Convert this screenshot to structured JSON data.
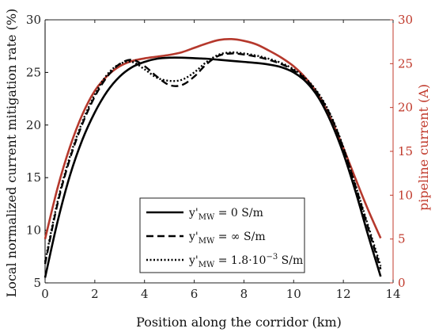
{
  "chart_data": {
    "type": "line",
    "xlabel": "Position along the corridor (km)",
    "ylabel_left": "Local normalized current mitigation rate (%)",
    "ylabel_right": "pipeline current (A)",
    "xlim": [
      0,
      14
    ],
    "ylim_left": [
      5,
      30
    ],
    "ylim_right": [
      0,
      30
    ],
    "xticks": [
      0,
      2,
      4,
      6,
      8,
      10,
      12,
      14
    ],
    "yticks_left": [
      5,
      10,
      15,
      20,
      25,
      30
    ],
    "yticks_right": [
      0,
      5,
      10,
      15,
      20,
      25,
      30
    ],
    "grid": false,
    "legend_position": "bottom-center",
    "colors": {
      "left_axis": "#000000",
      "right_axis": "#c0392b",
      "pipeline": "#b5382c"
    },
    "series": [
      {
        "name": "y'_MW = 0 S/m",
        "legend_main": "y'",
        "legend_sub": "MW",
        "legend_tail": " = 0 S/m",
        "axis": "left",
        "style": "solid",
        "x": [
          0,
          0.5,
          1,
          1.5,
          2,
          2.5,
          3,
          3.5,
          4,
          4.5,
          5,
          5.5,
          6,
          6.5,
          7,
          7.5,
          8,
          8.5,
          9,
          9.5,
          10,
          10.5,
          11,
          11.5,
          12,
          12.5,
          13,
          13.5
        ],
        "y": [
          5.5,
          10.8,
          15.2,
          18.6,
          21.2,
          23.2,
          24.6,
          25.5,
          26.0,
          26.3,
          26.4,
          26.4,
          26.35,
          26.3,
          26.2,
          26.1,
          26.0,
          25.9,
          25.75,
          25.5,
          25.0,
          24.1,
          22.6,
          20.3,
          17.3,
          13.6,
          9.5,
          5.6
        ]
      },
      {
        "name": "y'_MW = ∞ S/m",
        "legend_main": "y'",
        "legend_sub": "MW",
        "legend_tail": " = ∞ S/m",
        "axis": "left",
        "style": "dashed",
        "x": [
          0,
          0.5,
          1,
          1.5,
          2,
          2.5,
          3,
          3.5,
          4,
          4.5,
          5,
          5.5,
          6,
          6.5,
          7,
          7.5,
          8,
          8.5,
          9,
          9.5,
          10,
          10.5,
          11,
          11.5,
          12,
          12.5,
          13,
          13.5
        ],
        "y": [
          6.8,
          12.5,
          16.8,
          20.1,
          22.7,
          24.6,
          25.8,
          26.2,
          25.6,
          24.6,
          23.8,
          23.8,
          24.6,
          25.8,
          26.6,
          26.8,
          26.7,
          26.5,
          26.2,
          25.8,
          25.2,
          24.3,
          22.9,
          20.8,
          17.8,
          14.1,
          10.2,
          6.3
        ]
      },
      {
        "name": "y'_MW = 1.8·10^-3 S/m",
        "legend_main": "y'",
        "legend_sub": "MW",
        "legend_tail": " = 1.8·10",
        "legend_sup": "−3",
        "legend_unit": " S/m",
        "axis": "left",
        "style": "dotted",
        "x": [
          0,
          0.5,
          1,
          1.5,
          2,
          2.5,
          3,
          3.5,
          4,
          4.5,
          5,
          5.5,
          6,
          6.5,
          7,
          7.5,
          8,
          8.5,
          9,
          9.5,
          10,
          10.5,
          11,
          11.5,
          12,
          12.5,
          13,
          13.5
        ],
        "y": [
          7.0,
          12.7,
          17.0,
          20.3,
          22.9,
          24.8,
          25.8,
          26.0,
          25.3,
          24.5,
          24.2,
          24.3,
          25.0,
          26.0,
          26.7,
          26.9,
          26.8,
          26.6,
          26.3,
          25.9,
          25.3,
          24.4,
          23.0,
          20.9,
          17.9,
          14.2,
          10.4,
          6.6
        ]
      },
      {
        "name": "pipeline current",
        "axis": "right",
        "style": "solid-red",
        "x": [
          0,
          0.5,
          1,
          1.5,
          2,
          2.5,
          3,
          3.5,
          4,
          4.5,
          5,
          5.5,
          6,
          6.5,
          7,
          7.5,
          8,
          8.5,
          9,
          9.5,
          10,
          10.5,
          11,
          11.5,
          12,
          12.5,
          13,
          13.5
        ],
        "y": [
          5.0,
          10.8,
          15.5,
          19.2,
          21.9,
          23.6,
          24.7,
          25.3,
          25.6,
          25.8,
          26.0,
          26.3,
          26.8,
          27.3,
          27.7,
          27.8,
          27.6,
          27.2,
          26.5,
          25.7,
          24.7,
          23.3,
          21.4,
          18.7,
          15.4,
          11.8,
          8.3,
          5.1
        ]
      }
    ]
  }
}
